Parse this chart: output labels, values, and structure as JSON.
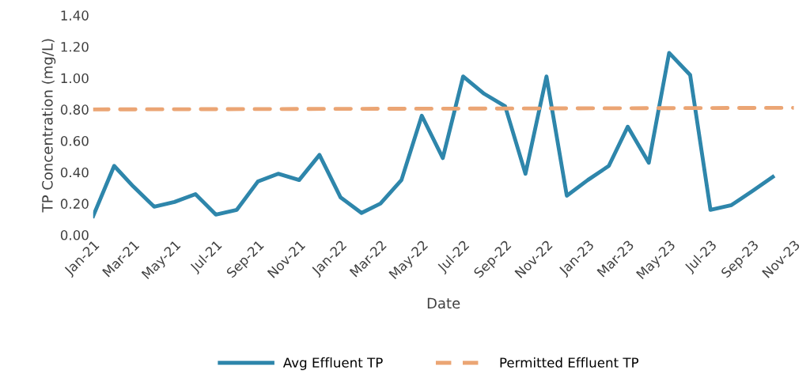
{
  "chart_data": {
    "type": "line",
    "xlabel": "Date",
    "ylabel": "TP Concentration (mg/L)",
    "xlim": [
      "2021-01",
      "2023-11"
    ],
    "xticks": [
      {
        "value": "2021-01",
        "label": "Jan-21"
      },
      {
        "value": "2021-03",
        "label": "Mar-21"
      },
      {
        "value": "2021-05",
        "label": "May-21"
      },
      {
        "value": "2021-07",
        "label": "Jul-21"
      },
      {
        "value": "2021-09",
        "label": "Sep-21"
      },
      {
        "value": "2021-11",
        "label": "Nov-21"
      },
      {
        "value": "2022-01",
        "label": "Jan-22"
      },
      {
        "value": "2022-03",
        "label": "Mar-22"
      },
      {
        "value": "2022-05",
        "label": "May-22"
      },
      {
        "value": "2022-07",
        "label": "Jul-22"
      },
      {
        "value": "2022-09",
        "label": "Sep-22"
      },
      {
        "value": "2022-11",
        "label": "Nov-22"
      },
      {
        "value": "2023-01",
        "label": "Jan-23"
      },
      {
        "value": "2023-03",
        "label": "Mar-23"
      },
      {
        "value": "2023-05",
        "label": "May-23"
      },
      {
        "value": "2023-07",
        "label": "Jul-23"
      },
      {
        "value": "2023-09",
        "label": "Sep-23"
      },
      {
        "value": "2023-11",
        "label": "Nov-23"
      }
    ],
    "ylim": [
      0,
      1.4
    ],
    "yticks": [
      {
        "value": 0,
        "label": "0.00"
      },
      {
        "value": 0.2,
        "label": "0.20"
      },
      {
        "value": 0.4,
        "label": "0.40"
      },
      {
        "value": 0.6,
        "label": "0.60"
      },
      {
        "value": 0.8,
        "label": "0.80"
      },
      {
        "value": 1.0,
        "label": "1.00"
      },
      {
        "value": 1.2,
        "label": "1.20"
      },
      {
        "value": 1.4,
        "label": "1.40"
      }
    ],
    "grid": false,
    "legend": "bottom",
    "marker": "none",
    "series": [
      {
        "name": "Avg Effluent TP",
        "color": "#2e86ab",
        "line_style": "solid",
        "x": [
          "2021-01",
          "2021-02",
          "2021-03",
          "2021-04",
          "2021-05",
          "2021-06",
          "2021-07",
          "2021-08",
          "2021-09",
          "2021-10",
          "2021-11",
          "2021-12",
          "2022-01",
          "2022-02",
          "2022-03",
          "2022-04",
          "2022-05",
          "2022-06",
          "2022-07",
          "2022-08",
          "2022-09",
          "2022-10",
          "2022-11",
          "2022-12",
          "2023-01",
          "2023-02",
          "2023-03",
          "2023-04",
          "2023-05",
          "2023-06",
          "2023-07",
          "2023-08",
          "2023-09",
          "2023-10"
        ],
        "values": [
          0.12,
          0.44,
          0.31,
          0.18,
          0.21,
          0.26,
          0.13,
          0.16,
          0.34,
          0.39,
          0.35,
          0.51,
          0.24,
          0.14,
          0.2,
          0.35,
          0.76,
          0.49,
          1.01,
          0.9,
          0.82,
          0.39,
          1.01,
          0.25,
          0.35,
          0.44,
          0.69,
          0.46,
          1.16,
          1.02,
          0.16,
          0.19,
          0.28,
          0.37
        ]
      },
      {
        "name": "Permitted Effluent TP",
        "color": "#eba574",
        "line_style": "dashed",
        "x": [
          "2021-01",
          "2023-11"
        ],
        "values": [
          0.8,
          0.81
        ]
      }
    ]
  }
}
